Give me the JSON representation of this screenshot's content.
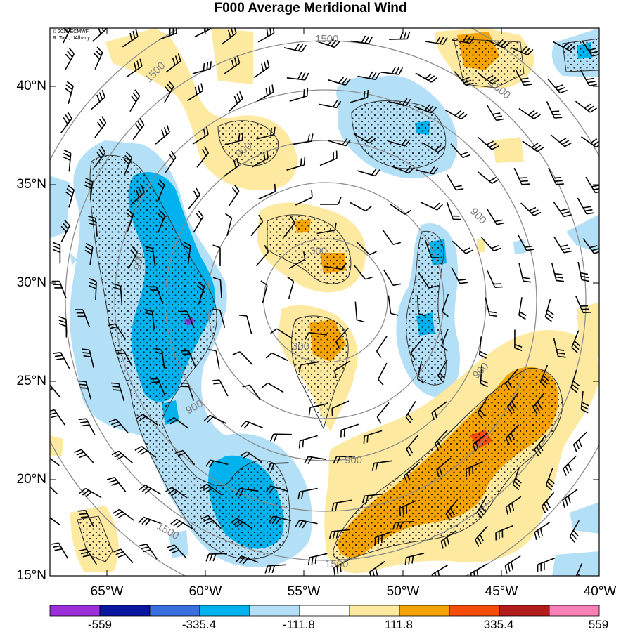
{
  "title": "F000 Average Meridional Wind",
  "credit": {
    "line1": "© 2016 ECMWF",
    "line2": "R. Torn, UAlbany"
  },
  "lat_labels": [
    "40°N",
    "35°N",
    "30°N",
    "25°N",
    "20°N",
    "15°N"
  ],
  "lon_labels": [
    "65°W",
    "60°W",
    "55°W",
    "50°W",
    "45°W",
    "40°W"
  ],
  "colorbar": {
    "labels": [
      "-559",
      "-335.4",
      "-111.8",
      "111.8",
      "335.4",
      "559"
    ],
    "colors": [
      "#9b30d9",
      "#0a16a0",
      "#3a6fe0",
      "#00b3ee",
      "#b4e0f7",
      "#ffffff",
      "#fde9a0",
      "#f5a300",
      "#f54c0a",
      "#b31c1c",
      "#f781b4"
    ]
  },
  "contour_labels": [
    "1500",
    "1500",
    "900",
    "900",
    "900",
    "300",
    "300",
    "900",
    "900",
    "900",
    "1500",
    "1500",
    "1500"
  ],
  "legend_colors": {
    "neg_light": "#b4e0f7",
    "neg_mid": "#00b3ee",
    "neg_dark": "#3a6fe0",
    "pos_light": "#fde9a0",
    "pos_mid": "#f5a300",
    "pos_dark": "#f54c0a",
    "contour": "#8c8c8c"
  }
}
